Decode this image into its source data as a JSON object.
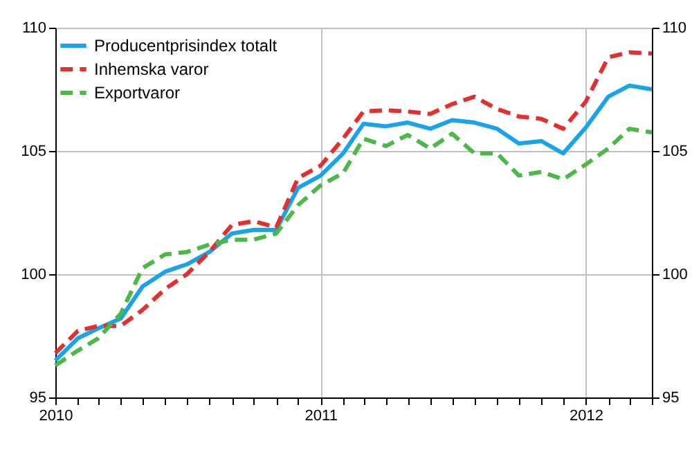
{
  "chart_data": {
    "type": "line",
    "x": [
      "2010-01",
      "2010-02",
      "2010-03",
      "2010-04",
      "2010-05",
      "2010-06",
      "2010-07",
      "2010-08",
      "2010-09",
      "2010-10",
      "2010-11",
      "2010-12",
      "2011-01",
      "2011-02",
      "2011-03",
      "2011-04",
      "2011-05",
      "2011-06",
      "2011-07",
      "2011-08",
      "2011-09",
      "2011-10",
      "2011-11",
      "2011-12",
      "2012-01",
      "2012-02",
      "2012-03",
      "2012-04"
    ],
    "series": [
      {
        "name": "Producentprisindex totalt",
        "color": "#1aa3e8",
        "line_style": "solid",
        "values": [
          96.5,
          97.4,
          97.8,
          98.2,
          99.5,
          100.1,
          100.4,
          100.9,
          101.65,
          101.8,
          101.8,
          103.5,
          104.0,
          104.9,
          106.1,
          106.0,
          106.15,
          105.9,
          106.25,
          106.15,
          105.9,
          105.3,
          105.4,
          104.9,
          105.95,
          107.2,
          107.65,
          107.5
        ]
      },
      {
        "name": "Inhemska varor",
        "color": "#e03030",
        "line_style": "dashed",
        "values": [
          96.8,
          97.7,
          97.9,
          97.9,
          98.55,
          99.4,
          100.0,
          100.9,
          102.0,
          102.15,
          101.9,
          103.9,
          104.4,
          105.5,
          106.6,
          106.65,
          106.6,
          106.5,
          106.9,
          107.2,
          106.7,
          106.4,
          106.3,
          105.9,
          107.0,
          108.8,
          109.0,
          108.95
        ]
      },
      {
        "name": "Exportvaror",
        "color": "#4cb848",
        "line_style": "dashed",
        "values": [
          96.3,
          96.9,
          97.4,
          98.4,
          100.25,
          100.8,
          100.9,
          101.2,
          101.4,
          101.4,
          101.65,
          102.8,
          103.6,
          104.1,
          105.5,
          105.2,
          105.65,
          105.1,
          105.7,
          104.9,
          104.9,
          104.0,
          104.15,
          103.85,
          104.45,
          105.1,
          105.9,
          105.75
        ]
      }
    ],
    "xlim": [
      "2010-01",
      "2012-04"
    ],
    "xticks": [
      {
        "value": "2010-01",
        "label": "2010"
      },
      {
        "value": "2010-02",
        "label": null
      },
      {
        "value": "2010-03",
        "label": null
      },
      {
        "value": "2010-04",
        "label": null
      },
      {
        "value": "2010-05",
        "label": null
      },
      {
        "value": "2010-06",
        "label": null
      },
      {
        "value": "2010-07",
        "label": null
      },
      {
        "value": "2010-08",
        "label": null
      },
      {
        "value": "2010-09",
        "label": null
      },
      {
        "value": "2010-10",
        "label": null
      },
      {
        "value": "2010-11",
        "label": null
      },
      {
        "value": "2010-12",
        "label": null
      },
      {
        "value": "2011-01",
        "label": "2011"
      },
      {
        "value": "2011-02",
        "label": null
      },
      {
        "value": "2011-03",
        "label": null
      },
      {
        "value": "2011-04",
        "label": null
      },
      {
        "value": "2011-05",
        "label": null
      },
      {
        "value": "2011-06",
        "label": null
      },
      {
        "value": "2011-07",
        "label": null
      },
      {
        "value": "2011-08",
        "label": null
      },
      {
        "value": "2011-09",
        "label": null
      },
      {
        "value": "2011-10",
        "label": null
      },
      {
        "value": "2011-11",
        "label": null
      },
      {
        "value": "2011-12",
        "label": null
      },
      {
        "value": "2012-01",
        "label": "2012"
      },
      {
        "value": "2012-02",
        "label": null
      },
      {
        "value": "2012-03",
        "label": null
      },
      {
        "value": "2012-04",
        "label": null
      }
    ],
    "ylim": [
      95,
      110
    ],
    "yticks": [
      95,
      100,
      105,
      110
    ],
    "y2lim": [
      95,
      110
    ],
    "y2ticks": [
      95,
      100,
      105,
      110
    ],
    "grid": true,
    "legend": "top left"
  }
}
